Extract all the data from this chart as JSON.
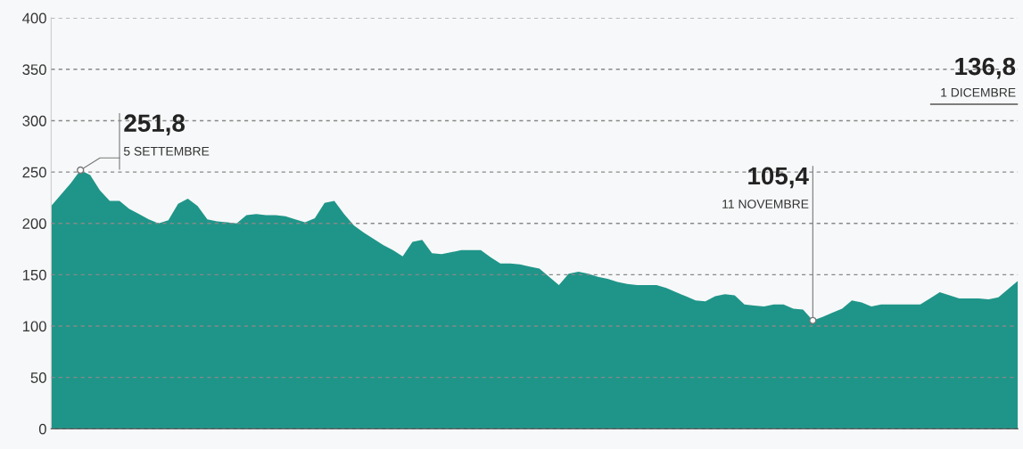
{
  "chart_data": {
    "type": "area",
    "categories": [
      null,
      null,
      null,
      null,
      null,
      null,
      null,
      null,
      null,
      null,
      null,
      null,
      null,
      null,
      null,
      null,
      null,
      null,
      null,
      null,
      null,
      null,
      null,
      null,
      null,
      null,
      null,
      null,
      null,
      null,
      null,
      null,
      null,
      null,
      null,
      null,
      null,
      null,
      null,
      null,
      null,
      null,
      null,
      null,
      null,
      null,
      null,
      null,
      null,
      null,
      null,
      null,
      null,
      null,
      null,
      null,
      null,
      null,
      null,
      null,
      null,
      null,
      null,
      null,
      null,
      null,
      null,
      null,
      null,
      null,
      null,
      null,
      null,
      null,
      null,
      null,
      null,
      null,
      null,
      null,
      null,
      null,
      null,
      null,
      null,
      null,
      null,
      null,
      null,
      null,
      null,
      null,
      null,
      null,
      null,
      null,
      null,
      null,
      null,
      null
    ],
    "series": [
      {
        "color": "#1f9589",
        "values": [
          217,
          228,
          239,
          251.8,
          247,
          232,
          222,
          222,
          214,
          209,
          204,
          200,
          203,
          219,
          224,
          217,
          204,
          202,
          201,
          200,
          208,
          209,
          208,
          208,
          207,
          204,
          201,
          205,
          220,
          222,
          209,
          198,
          191,
          185,
          179,
          174,
          168,
          182,
          184,
          171,
          170,
          172,
          174,
          174,
          174,
          167,
          161,
          161,
          160,
          158,
          156,
          148,
          140,
          151,
          153,
          151,
          148,
          146,
          143,
          141,
          140,
          140,
          140,
          137,
          133,
          129,
          125,
          124,
          129,
          131,
          130,
          121,
          120,
          119,
          121,
          121,
          117,
          116,
          105.4,
          109,
          113,
          117,
          125,
          123,
          119,
          121,
          121,
          121,
          121,
          121,
          127,
          133,
          130,
          127,
          127,
          127,
          126,
          128,
          136,
          144
        ]
      }
    ],
    "ylim": [
      0,
      400
    ],
    "yticks": [
      0,
      50,
      100,
      150,
      200,
      250,
      300,
      350,
      400
    ],
    "grid": "y",
    "annotations": [
      "251,8\n5 SETTEMBRE",
      "105,4\n11 NOVEMBRE",
      "136,8\n1 DICEMBRE"
    ]
  }
}
